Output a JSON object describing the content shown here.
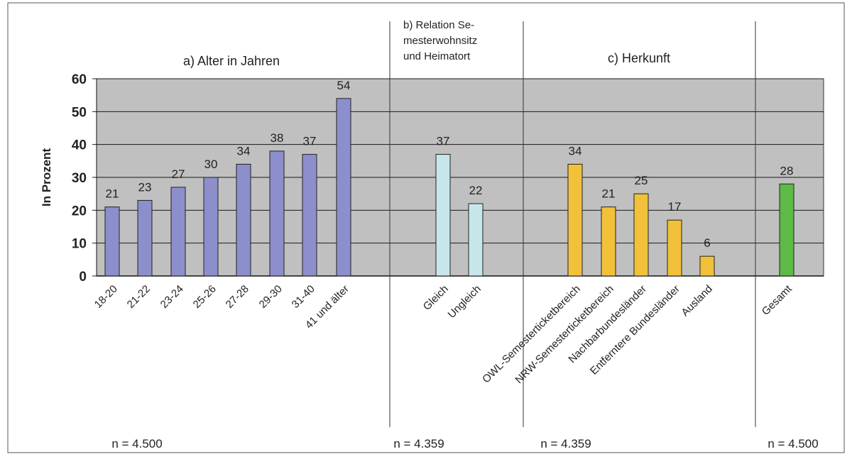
{
  "chart_data": {
    "type": "bar",
    "ylabel": "In Prozent",
    "ylim": [
      0,
      60
    ],
    "yticks": [
      0,
      10,
      20,
      30,
      40,
      50,
      60
    ],
    "grid": true,
    "legend": "none",
    "colors": {
      "plot_background": "#c0c0c0",
      "group_a": "#8c8fcb",
      "group_b": "#c6e6ea",
      "group_c": "#f2c13a",
      "group_total": "#5dba47"
    },
    "groups": [
      {
        "id": "a",
        "title": [
          "a) Alter in Jahren"
        ],
        "n_label": "n = 4.500",
        "color_key": "group_a",
        "categories": [
          "18-20",
          "21-22",
          "23-24",
          "25-26",
          "27-28",
          "29-30",
          "31-40",
          "41 und älter"
        ],
        "values": [
          21,
          23,
          27,
          30,
          34,
          38,
          37,
          54
        ],
        "value_labels": [
          "21",
          "23",
          "27",
          "30",
          "34",
          "38",
          "37",
          "54"
        ]
      },
      {
        "id": "b",
        "title": [
          "b) Relation Se-",
          "mesterwohnsitz",
          "und Heimatort"
        ],
        "n_label": "n = 4.359",
        "color_key": "group_b",
        "categories": [
          "Gleich",
          "Ungleich"
        ],
        "values": [
          37,
          22
        ],
        "value_labels": [
          "37",
          "22"
        ]
      },
      {
        "id": "c",
        "title": [
          "c) Herkunft"
        ],
        "n_label": "n = 4.359",
        "color_key": "group_c",
        "categories": [
          "OWL-Semesterticketbereich",
          "NRW-Semesterticketbereich",
          "Nachbarbundesländer",
          "Entferntere Bundesländer",
          "Ausland"
        ],
        "values": [
          34,
          21,
          25,
          17,
          6
        ],
        "value_labels": [
          "34",
          "21",
          "25",
          "17",
          "6"
        ]
      },
      {
        "id": "total",
        "title": [],
        "n_label": "n = 4.500",
        "color_key": "group_total",
        "categories": [
          "Gesamt"
        ],
        "values": [
          28
        ],
        "value_labels": [
          "28"
        ]
      }
    ]
  }
}
